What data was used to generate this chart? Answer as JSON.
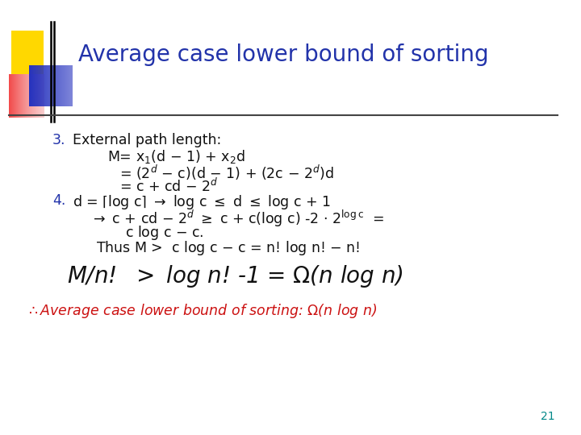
{
  "title": "Average case lower bound of sorting",
  "title_color": "#2233AA",
  "bg_color": "#ffffff",
  "slide_number": "21",
  "slide_number_color": "#008888",
  "figsize": [
    7.2,
    5.4
  ],
  "dpi": 100,
  "blue_color": "#2233AA",
  "red_color": "#CC1111",
  "body_color": "#111111",
  "fs_title": 20,
  "fs_body": 12.5,
  "fs_large": 20
}
